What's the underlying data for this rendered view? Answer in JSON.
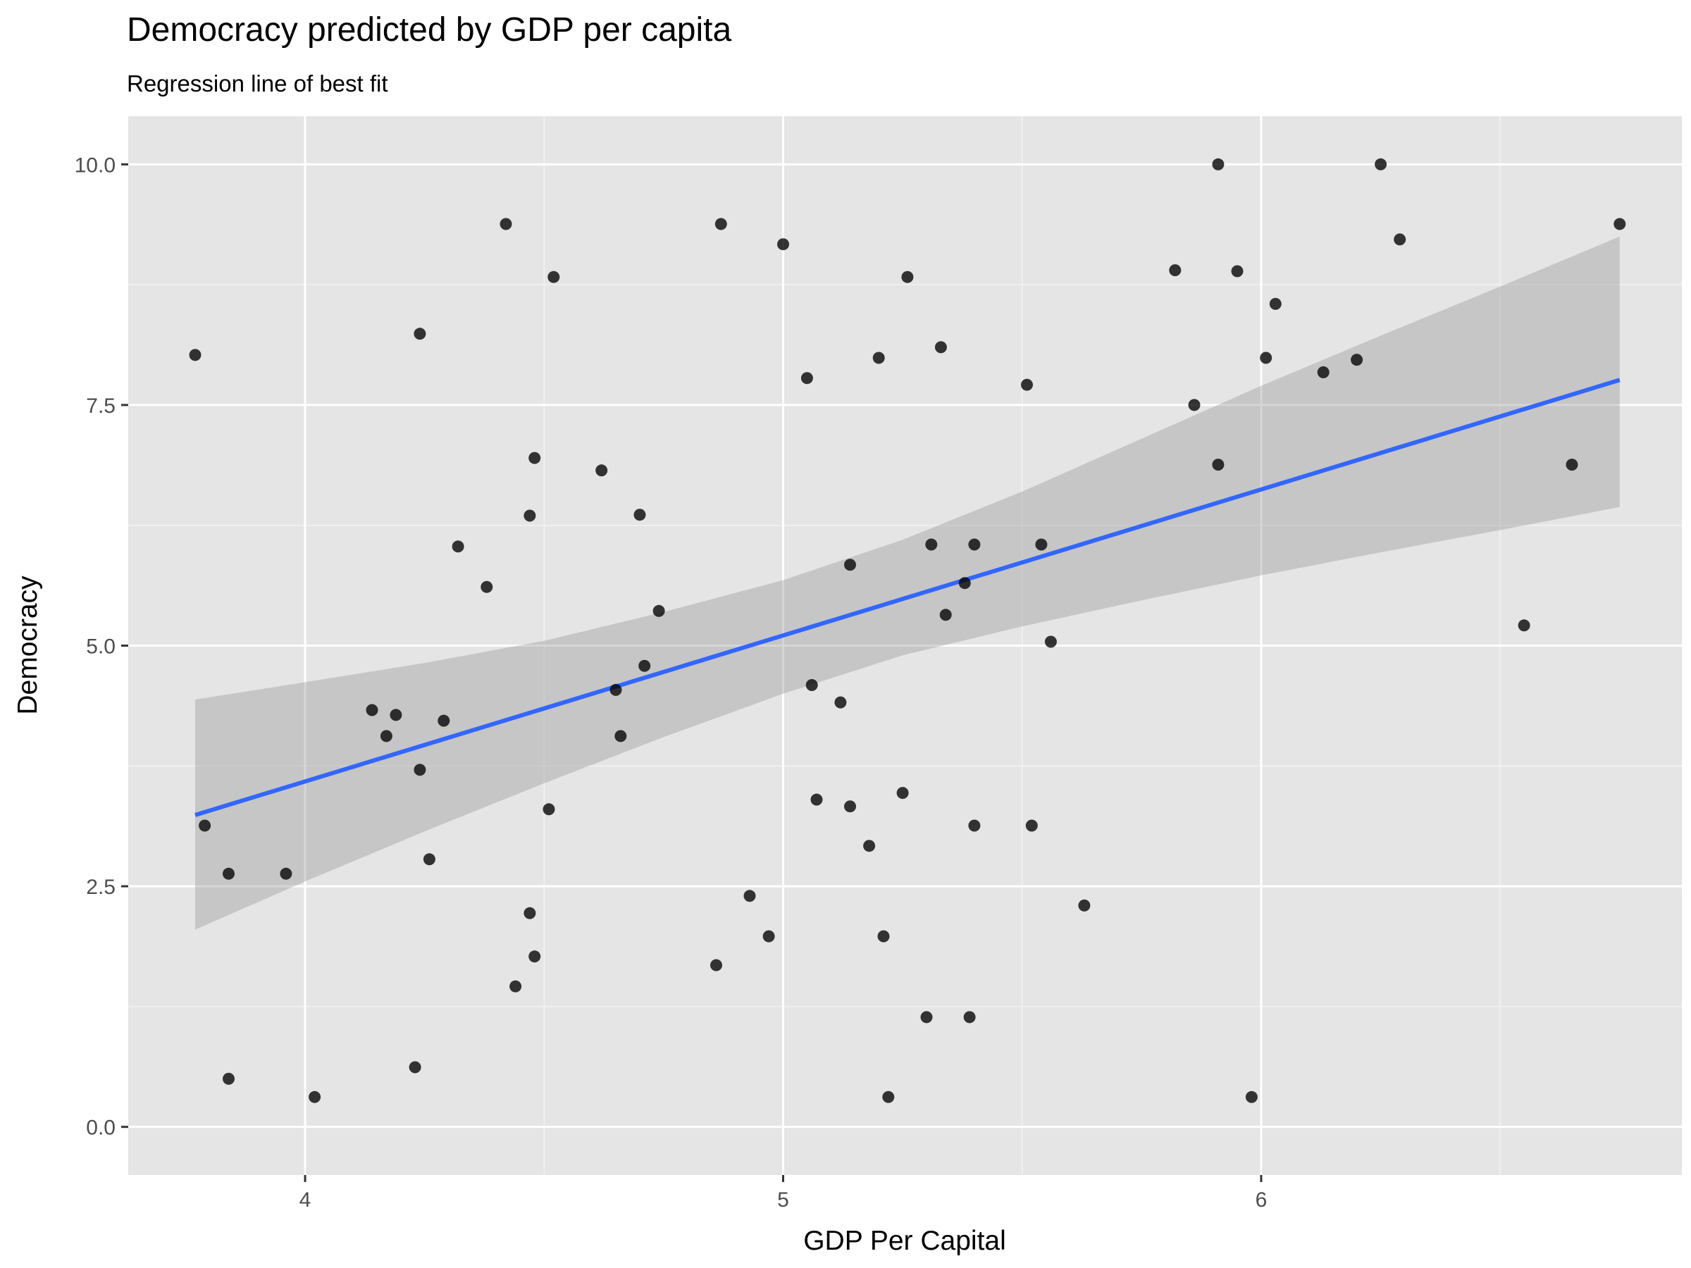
{
  "chart_data": {
    "type": "scatter",
    "title": "Democracy predicted by GDP per capita",
    "subtitle": "Regression line of best fit",
    "xlabel": "GDP Per Capital",
    "ylabel": "Democracy",
    "xlim": [
      3.63,
      6.88
    ],
    "ylim": [
      -0.5,
      10.5
    ],
    "x_ticks": [
      4,
      5,
      6
    ],
    "x_tick_labels": [
      "4",
      "5",
      "6"
    ],
    "y_ticks": [
      0,
      2.5,
      5,
      7.5,
      10
    ],
    "y_tick_labels": [
      "0.0",
      "2.5",
      "5.0",
      "7.5",
      "10.0"
    ],
    "grid": true,
    "legend": "none",
    "colors": {
      "panel_background": "#e5e5e5",
      "grid_major": "#ffffff",
      "grid_minor": "#f2f2f2",
      "points": "#000000",
      "regression_line": "#3366ff",
      "confidence_band": "#999999"
    },
    "points": [
      [
        3.77,
        8.02
      ],
      [
        3.79,
        3.13
      ],
      [
        3.84,
        2.63
      ],
      [
        3.84,
        0.5
      ],
      [
        3.96,
        2.63
      ],
      [
        4.02,
        0.31
      ],
      [
        4.14,
        4.33
      ],
      [
        4.17,
        4.06
      ],
      [
        4.19,
        4.28
      ],
      [
        4.23,
        0.62
      ],
      [
        4.24,
        8.24
      ],
      [
        4.24,
        3.71
      ],
      [
        4.26,
        2.78
      ],
      [
        4.29,
        4.22
      ],
      [
        4.32,
        6.03
      ],
      [
        4.38,
        5.61
      ],
      [
        4.42,
        9.38
      ],
      [
        4.44,
        1.46
      ],
      [
        4.47,
        6.35
      ],
      [
        4.47,
        2.22
      ],
      [
        4.48,
        6.95
      ],
      [
        4.48,
        1.77
      ],
      [
        4.51,
        3.3
      ],
      [
        4.52,
        8.83
      ],
      [
        4.62,
        6.82
      ],
      [
        4.65,
        4.54
      ],
      [
        4.66,
        4.06
      ],
      [
        4.7,
        6.36
      ],
      [
        4.71,
        4.79
      ],
      [
        4.74,
        5.36
      ],
      [
        4.86,
        1.68
      ],
      [
        4.87,
        9.38
      ],
      [
        4.93,
        2.4
      ],
      [
        4.97,
        1.98
      ],
      [
        5.0,
        9.17
      ],
      [
        5.05,
        7.78
      ],
      [
        5.06,
        4.59
      ],
      [
        5.07,
        3.4
      ],
      [
        5.12,
        4.41
      ],
      [
        5.14,
        5.84
      ],
      [
        5.14,
        3.33
      ],
      [
        5.18,
        2.92
      ],
      [
        5.2,
        7.99
      ],
      [
        5.21,
        1.98
      ],
      [
        5.22,
        0.31
      ],
      [
        5.25,
        3.47
      ],
      [
        5.26,
        8.83
      ],
      [
        5.3,
        1.14
      ],
      [
        5.31,
        6.05
      ],
      [
        5.33,
        8.1
      ],
      [
        5.34,
        5.32
      ],
      [
        5.38,
        5.65
      ],
      [
        5.39,
        1.14
      ],
      [
        5.4,
        3.13
      ],
      [
        5.4,
        6.05
      ],
      [
        5.51,
        7.71
      ],
      [
        5.52,
        3.13
      ],
      [
        5.54,
        6.05
      ],
      [
        5.56,
        5.04
      ],
      [
        5.63,
        2.3
      ],
      [
        5.82,
        8.9
      ],
      [
        5.86,
        7.5
      ],
      [
        5.91,
        10.0
      ],
      [
        5.91,
        6.88
      ],
      [
        5.95,
        8.89
      ],
      [
        5.98,
        0.31
      ],
      [
        6.01,
        7.99
      ],
      [
        6.03,
        8.55
      ],
      [
        6.13,
        7.84
      ],
      [
        6.2,
        7.97
      ],
      [
        6.25,
        10.0
      ],
      [
        6.29,
        9.22
      ],
      [
        6.55,
        5.21
      ],
      [
        6.65,
        6.88
      ],
      [
        6.75,
        9.38
      ]
    ],
    "regression": {
      "x": [
        3.77,
        6.75
      ],
      "y": [
        3.24,
        7.76
      ]
    },
    "confidence_band": {
      "x": [
        3.77,
        4.0,
        4.25,
        4.5,
        4.75,
        5.0,
        5.25,
        5.5,
        5.75,
        6.0,
        6.25,
        6.5,
        6.75
      ],
      "lower": [
        2.05,
        2.55,
        3.07,
        3.57,
        4.05,
        4.5,
        4.9,
        5.2,
        5.47,
        5.73,
        5.97,
        6.2,
        6.44
      ],
      "upper": [
        4.44,
        4.62,
        4.82,
        5.05,
        5.35,
        5.68,
        6.1,
        6.6,
        7.15,
        7.7,
        8.22,
        8.73,
        9.25
      ]
    }
  }
}
